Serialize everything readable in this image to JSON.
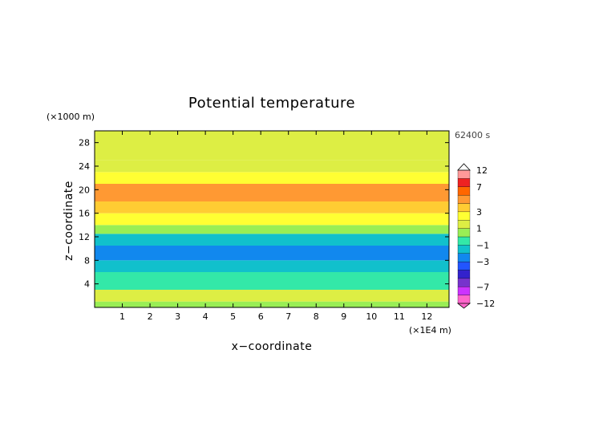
{
  "chart_data": {
    "type": "heatmap",
    "title": "Potential temperature",
    "xlabel": "x−coordinate",
    "ylabel": "z−coordinate",
    "x_unit": "(×1E4 m)",
    "y_unit": "(×1000 m)",
    "time_label": "62400 s",
    "xlim": [
      0,
      12.8
    ],
    "ylim": [
      0,
      30
    ],
    "x_ticks": [
      1,
      2,
      3,
      4,
      5,
      6,
      7,
      8,
      9,
      10,
      11,
      12
    ],
    "y_ticks": [
      4,
      8,
      12,
      16,
      20,
      24,
      28
    ],
    "colorbar": {
      "levels": [
        -12,
        -9,
        -7,
        -5,
        -4,
        -3,
        -2,
        -1,
        0,
        1,
        2,
        3,
        4,
        5,
        7,
        9,
        12
      ],
      "tick_labels": [
        "12",
        "7",
        "3",
        "1",
        "−1",
        "−3",
        "−7",
        "−12"
      ],
      "colors": [
        "#ff66cc",
        "#cc33ff",
        "#7733cc",
        "#3322cc",
        "#2255ff",
        "#1188ee",
        "#11c0cc",
        "#33e8a8",
        "#99ee55",
        "#ddee44",
        "#ffff33",
        "#ffcc33",
        "#ff9933",
        "#ff6600",
        "#ee2222",
        "#ff9999"
      ]
    },
    "bands_by_height": [
      {
        "z_range": [
          0,
          1
        ],
        "dominant_anomaly": 0.3,
        "color": "#99ee55"
      },
      {
        "z_range": [
          1,
          3
        ],
        "dominant_anomaly": 0.6,
        "color": "#ddee44"
      },
      {
        "z_range": [
          3,
          6
        ],
        "dominant_anomaly": -0.5,
        "color": "#33e8a8"
      },
      {
        "z_range": [
          6,
          8
        ],
        "dominant_anomaly": -2.0,
        "color": "#11c0cc"
      },
      {
        "z_range": [
          8,
          10.5
        ],
        "dominant_anomaly": -3.0,
        "color": "#1188ee"
      },
      {
        "z_range": [
          10.5,
          12.5
        ],
        "dominant_anomaly": -2.0,
        "color": "#11c0cc"
      },
      {
        "z_range": [
          12.5,
          14
        ],
        "dominant_anomaly": 0.3,
        "color": "#99ee55"
      },
      {
        "z_range": [
          14,
          16
        ],
        "dominant_anomaly": 1.2,
        "color": "#ffff33"
      },
      {
        "z_range": [
          16,
          18
        ],
        "dominant_anomaly": 2.5,
        "color": "#ffcc33"
      },
      {
        "z_range": [
          18,
          21
        ],
        "dominant_anomaly": 3.5,
        "color": "#ff9933"
      },
      {
        "z_range": [
          21,
          23
        ],
        "dominant_anomaly": 1.5,
        "color": "#ffff33"
      },
      {
        "z_range": [
          23,
          25
        ],
        "dominant_anomaly": 0.5,
        "color": "#ddee44"
      },
      {
        "z_range": [
          25,
          30
        ],
        "dominant_anomaly": 0.8,
        "color": "#ddee44"
      }
    ],
    "grid": false
  }
}
